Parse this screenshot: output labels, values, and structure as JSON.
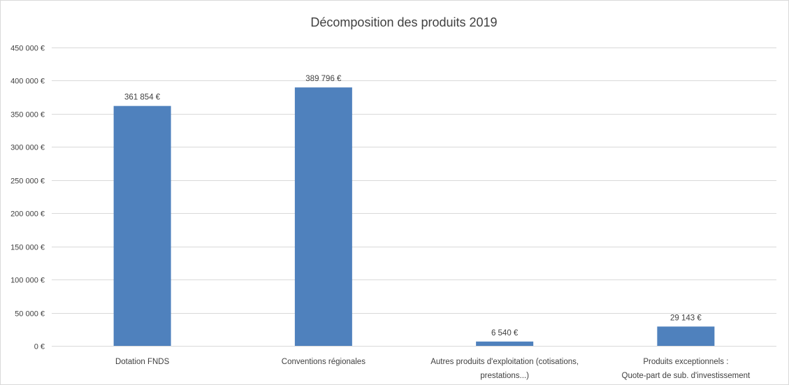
{
  "chart_data": {
    "type": "bar",
    "title": "Décomposition des produits 2019",
    "xlabel": "",
    "ylabel": "",
    "categories": [
      [
        "Dotation FNDS"
      ],
      [
        "Conventions régionales"
      ],
      [
        "Autres produits d'exploitation (cotisations,",
        "prestations...)"
      ],
      [
        "Produits exceptionnels :",
        "Quote-part de sub. d'investissement"
      ]
    ],
    "values": [
      361854,
      389796,
      6540,
      29143
    ],
    "data_labels": [
      "361 854 €",
      "389 796 €",
      "6 540 €",
      "29 143 €"
    ],
    "ylim": [
      0,
      450000
    ],
    "yticks": [
      0,
      50000,
      100000,
      150000,
      200000,
      250000,
      300000,
      350000,
      400000,
      450000
    ],
    "ytick_labels": [
      "0 €",
      "50 000 €",
      "100 000 €",
      "150 000 €",
      "200 000 €",
      "250 000 €",
      "300 000 €",
      "350 000 €",
      "400 000 €",
      "450 000 €"
    ],
    "grid": true,
    "legend": "none",
    "colors": {
      "bar": "#4f81bd",
      "grid": "#d9d9d9",
      "text": "#404040"
    }
  }
}
